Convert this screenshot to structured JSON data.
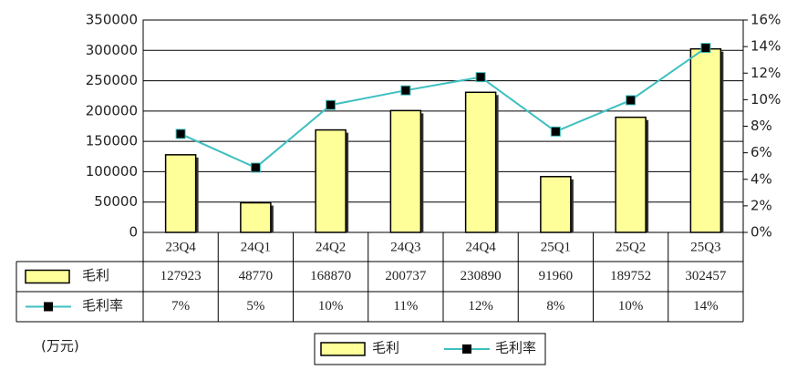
{
  "chart_data": {
    "type": "combo",
    "categories": [
      "23Q4",
      "24Q1",
      "24Q2",
      "24Q3",
      "24Q4",
      "25Q1",
      "25Q2",
      "25Q3"
    ],
    "series": [
      {
        "name": "毛利",
        "type": "bar",
        "color": "#ffff99",
        "values": [
          127923,
          48770,
          168870,
          200737,
          230890,
          91960,
          189752,
          302457
        ]
      },
      {
        "name": "毛利率",
        "type": "line",
        "axis": "y2",
        "color": "#3fbfbf",
        "values": [
          7.42,
          4.88,
          9.6,
          10.7,
          11.7,
          7.6,
          9.96,
          13.9
        ],
        "value_labels": [
          "7%",
          "5%",
          "10%",
          "11%",
          "12%",
          "8%",
          "10%",
          "14%"
        ]
      }
    ],
    "ylim": [
      0,
      350000
    ],
    "yticks": [
      0,
      50000,
      100000,
      150000,
      200000,
      250000,
      300000,
      350000
    ],
    "y2lim": [
      0,
      16
    ],
    "y2ticks": [
      {
        "value": 0,
        "label": "0%"
      },
      {
        "value": 2,
        "label": "2%"
      },
      {
        "value": 4,
        "label": "4%"
      },
      {
        "value": 6,
        "label": "6%"
      },
      {
        "value": 8,
        "label": "8%"
      },
      {
        "value": 10,
        "label": "10%"
      },
      {
        "value": 12,
        "label": "12%"
      },
      {
        "value": 14,
        "label": "14%"
      },
      {
        "value": 16,
        "label": "16%"
      }
    ],
    "unit_label": "(万元)",
    "grid": true
  }
}
